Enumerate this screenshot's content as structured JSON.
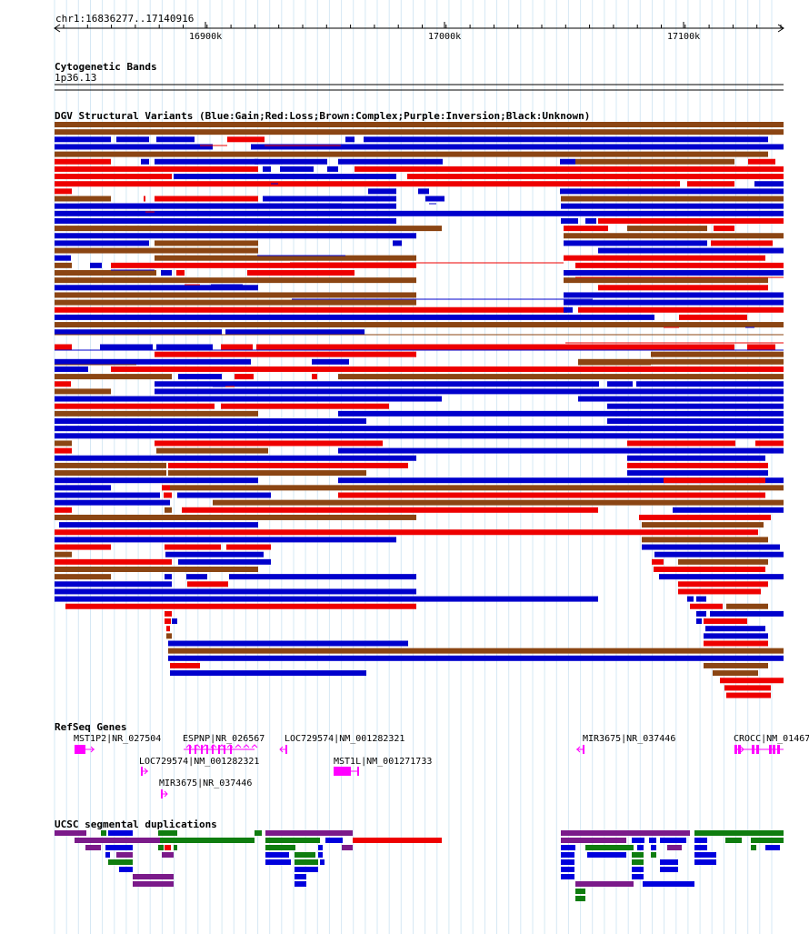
{
  "position": "chr1:16836277..17140916",
  "ruler": {
    "ticks": [
      "16900k",
      "17000k",
      "17100k"
    ]
  },
  "cytoband": {
    "title": "Cytogenetic Bands",
    "band": "1p36.13"
  },
  "dgv": {
    "title": "DGV Structural Variants (Blue:Gain;Red:Loss;Brown:Complex;Purple:Inversion;Black:Unknown)",
    "colors": {
      "gain": "#0000cc",
      "loss": "#ee0000",
      "complex": "#8b4513",
      "inversion": "#800080",
      "unknown": "#000000"
    }
  },
  "refseq": {
    "title": "RefSeq Genes",
    "color": "#ff00ff",
    "genes": [
      {
        "label": "MST1P2|NR_027504"
      },
      {
        "label": "ESPNP|NR_026567"
      },
      {
        "label": "LOC729574|NM_001282321"
      },
      {
        "label": "LOC729574|NM_001282321"
      },
      {
        "label": "MIR3675|NR_037446"
      },
      {
        "label": "MST1L|NM_001271733"
      },
      {
        "label": "MIR3675|NR_037446"
      },
      {
        "label": "CROCC|NM_01467"
      }
    ]
  },
  "segdup": {
    "title": "UCSC segmental duplications",
    "colors": {
      "purple": "#7b1a8a",
      "green": "#0f7d0f",
      "blue": "#0000dd",
      "red": "#ee0000"
    }
  }
}
